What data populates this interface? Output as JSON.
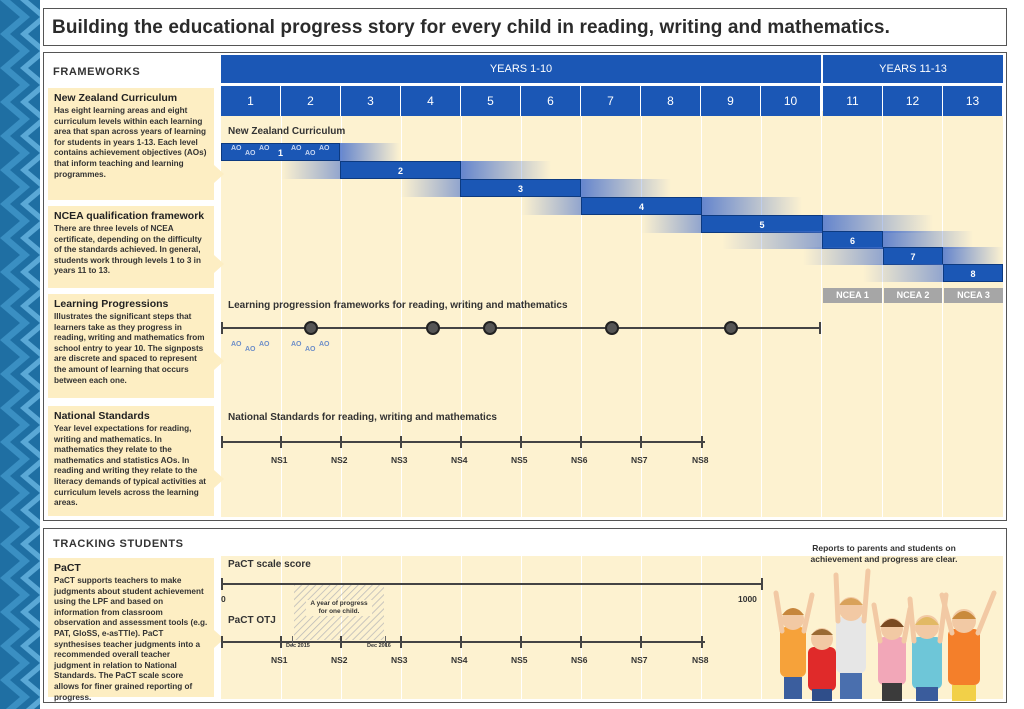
{
  "title": "Building the educational progress story for every child in reading, writing and mathematics.",
  "frameworks": {
    "label": "FRAMEWORKS",
    "header_years_1_10": "YEARS 1-10",
    "header_years_11_13": "YEARS 11-13",
    "years": [
      "1",
      "2",
      "3",
      "4",
      "5",
      "6",
      "7",
      "8",
      "9",
      "10",
      "11",
      "12",
      "13"
    ],
    "items": [
      {
        "title": "New Zealand Curriculum",
        "text": "Has eight learning areas and eight curriculum levels within each learning area that span across years of learning for students in years 1-13. Each level contains achievement objectives (AOs) that inform teaching and learning programmes."
      },
      {
        "title": "NCEA qualification framework",
        "text": "There are three levels of NCEA certificate, depending on the difficulty of the standards achieved. In general, students work through levels 1 to 3 in years 11 to 13."
      },
      {
        "title": "Learning Progressions",
        "text": "Illustrates the significant steps that learners take as they progress in reading, writing and mathematics from school entry to year 10. The signposts are discrete and spaced to represent the amount of learning that occurs between each one."
      },
      {
        "title": "National Standards",
        "text": "Year level expectations for reading, writing and mathematics. In mathematics they relate to the mathematics and statistics AOs. In reading and writing they relate to the literacy demands of typical activities at curriculum levels across the learning areas."
      }
    ],
    "nzc_title": "New Zealand Curriculum",
    "levels": [
      "1",
      "2",
      "3",
      "4",
      "5",
      "6",
      "7",
      "8"
    ],
    "ncea": [
      "NCEA 1",
      "NCEA 2",
      "NCEA 3"
    ],
    "ao": "AO",
    "lp_title": "Learning progression frameworks for reading, writing and mathematics",
    "ns_title": "National Standards for reading, writing and mathematics",
    "ns_labels": [
      "NS1",
      "NS2",
      "NS3",
      "NS4",
      "NS5",
      "NS6",
      "NS7",
      "NS8"
    ]
  },
  "tracking": {
    "label": "TRACKING STUDENTS",
    "pact_title": "PaCT",
    "pact_text": "PaCT supports teachers to make judgments about student achievement using the LPF and based on information from classroom observation and assessment tools (e.g. PAT, GloSS, e-asTTle). PaCT synthesises teacher judgments into a recommended overall teacher judgment in relation to National Standards. The PaCT scale score allows for finer grained reporting of progress.",
    "scale_title": "PaCT scale score",
    "scale_min": "0",
    "scale_max": "1000",
    "otj_title": "PaCT OTJ",
    "year_progress": "A year of progress for one child.",
    "date_start": "Dec 2015",
    "date_end": "Dec 2016",
    "reports_text": "Reports to parents and students on achievement and progress are clear."
  }
}
